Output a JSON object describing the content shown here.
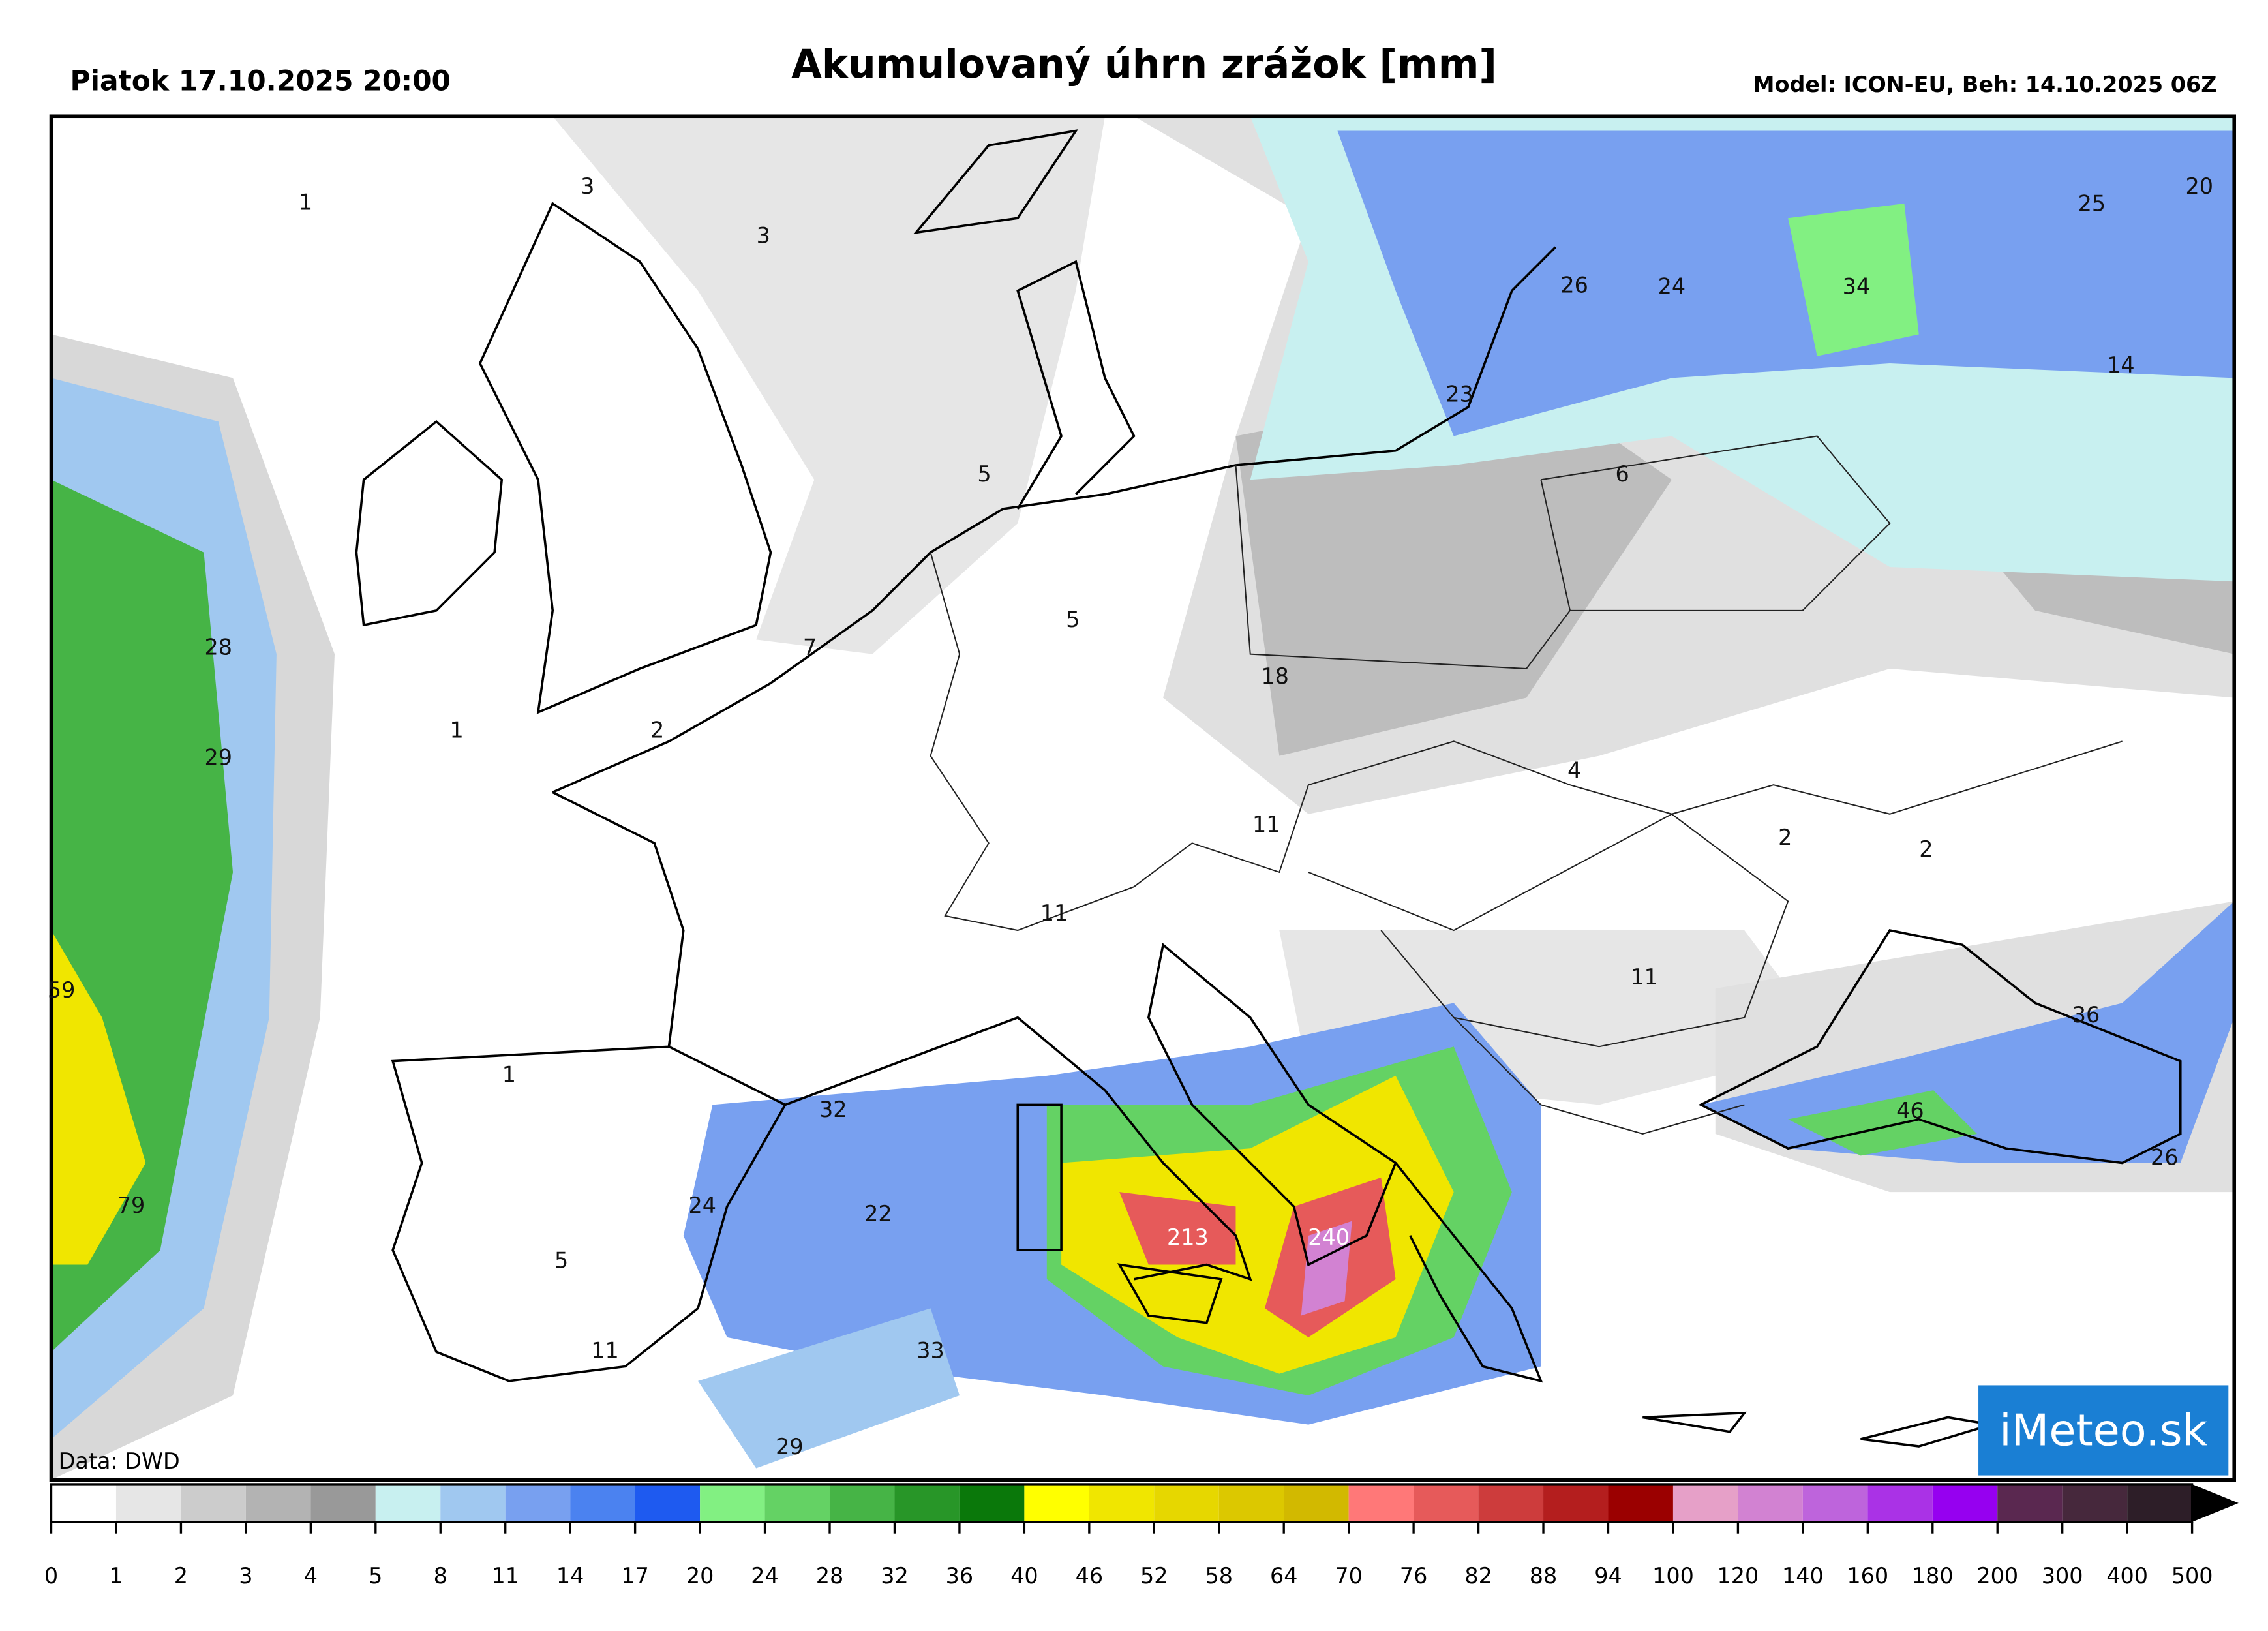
{
  "header": {
    "date": "Piatok 17.10.2025 20:00",
    "title": "Akumulovaný úhrn zrážok [mm]",
    "model": "Model: ICON-EU, Beh: 14.10.2025 06Z"
  },
  "map": {
    "values": [
      1,
      3,
      3,
      5,
      7,
      5,
      1,
      2,
      28,
      29,
      59,
      79,
      18,
      11,
      11,
      4,
      2,
      2,
      11,
      1,
      32,
      24,
      22,
      5,
      11,
      33,
      29,
      213,
      240,
      46,
      36,
      26,
      26,
      24,
      34,
      25,
      20,
      14,
      23,
      6
    ],
    "source": "Data: DWD",
    "logo": "iMeteo.sk"
  },
  "colorbar": {
    "ticks": [
      0,
      1,
      2,
      3,
      4,
      5,
      8,
      11,
      14,
      17,
      20,
      24,
      28,
      32,
      36,
      40,
      46,
      52,
      58,
      64,
      70,
      76,
      82,
      88,
      94,
      100,
      120,
      140,
      160,
      180,
      200,
      300,
      400,
      500
    ],
    "colors": [
      "#ffffff",
      "#e6e6e6",
      "#cccccc",
      "#b3b3b3",
      "#999999",
      "#c8f0f0",
      "#a0c8f0",
      "#78a0f0",
      "#4b82f0",
      "#1e5af0",
      "#82f082",
      "#64d264",
      "#46b446",
      "#289628",
      "#0a780a",
      "#ffff00",
      "#f0e600",
      "#e6d700",
      "#dcc800",
      "#d2b900",
      "#ff7878",
      "#e65a5a",
      "#cd3c3c",
      "#b41e1e",
      "#9b0000",
      "#e6a0c8",
      "#d282d2",
      "#be64dc",
      "#aa32e6",
      "#9600f0",
      "#5a2850",
      "#46283c",
      "#2d1e28"
    ],
    "extend_color": "#000000"
  }
}
